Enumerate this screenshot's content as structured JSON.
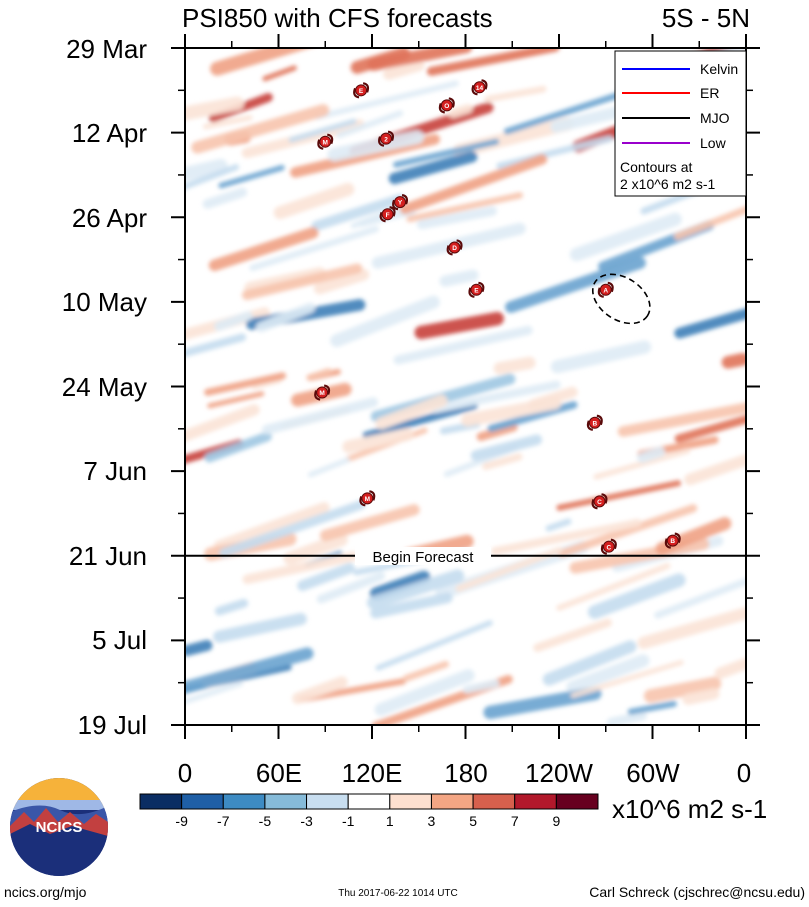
{
  "chart_data": {
    "type": "heatmap",
    "title": "PSI850 with CFS forecasts",
    "region": "5S - 5N",
    "x_ticks": [
      "0",
      "60E",
      "120E",
      "180",
      "120W",
      "60W",
      "0"
    ],
    "x_range_deg": [
      0,
      360
    ],
    "y_ticks": [
      "29 Mar",
      "12 Apr",
      "26 Apr",
      "10 May",
      "24 May",
      "7 Jun",
      "21 Jun",
      "5 Jul",
      "19 Jul"
    ],
    "y_range_days": [
      0,
      112
    ],
    "forecast_start": {
      "day": 84,
      "label": "Begin Forecast"
    },
    "legend": [
      {
        "label": "Kelvin",
        "color": "#0000ff"
      },
      {
        "label": "ER",
        "color": "#ff0000"
      },
      {
        "label": "MJO",
        "color": "#000000"
      },
      {
        "label": "Low",
        "color": "#9900cc"
      }
    ],
    "contour_note": [
      "Contours at",
      "2 x10^6 m2 s-1"
    ],
    "colorbar": {
      "unit": "x10^6 m2 s-1",
      "labels": [
        "-9",
        "-7",
        "-5",
        "-3",
        "-1",
        "1",
        "3",
        "5",
        "7",
        "9"
      ],
      "colors": [
        "#0a2d63",
        "#1f5fa6",
        "#3d8bc3",
        "#86bbd9",
        "#c8def0",
        "#ffffff",
        "#fde0d0",
        "#f4a684",
        "#d6604d",
        "#b2182b",
        "#67001f"
      ]
    },
    "tropical_cyclones": [
      {
        "label": "E",
        "lon": 113,
        "day": 7
      },
      {
        "label": "O",
        "lon": 168,
        "day": 9.5
      },
      {
        "label": "14",
        "lon": 189,
        "day": 6.5
      },
      {
        "label": "M",
        "lon": 90,
        "day": 15.5
      },
      {
        "label": "2",
        "lon": 129,
        "day": 15
      },
      {
        "label": "Y",
        "lon": 138,
        "day": 25.5
      },
      {
        "label": "F",
        "lon": 130,
        "day": 27.5
      },
      {
        "label": "D",
        "lon": 173,
        "day": 33
      },
      {
        "label": "E",
        "lon": 187,
        "day": 40
      },
      {
        "label": "A",
        "lon": 270,
        "day": 40
      },
      {
        "label": "M",
        "lon": 88,
        "day": 57
      },
      {
        "label": "B",
        "lon": 263,
        "day": 62
      },
      {
        "label": "M",
        "lon": 117,
        "day": 74.5
      },
      {
        "label": "C",
        "lon": 266,
        "day": 75
      },
      {
        "label": "C",
        "lon": 272,
        "day": 82.5
      },
      {
        "label": "B",
        "lon": 313,
        "day": 81.5
      }
    ],
    "mjo_contour": {
      "lon_center": 280,
      "day_center": 41.5,
      "lon_radius": 20,
      "day_radius": 3.5,
      "tilt_deg": 33
    }
  },
  "logo": {
    "text": "NCICS"
  },
  "footer": {
    "left": "ncics.org/mjo",
    "center": "Thu 2017-06-22 1014 UTC",
    "right": "Carl Schreck (cjschrec@ncsu.edu)"
  }
}
